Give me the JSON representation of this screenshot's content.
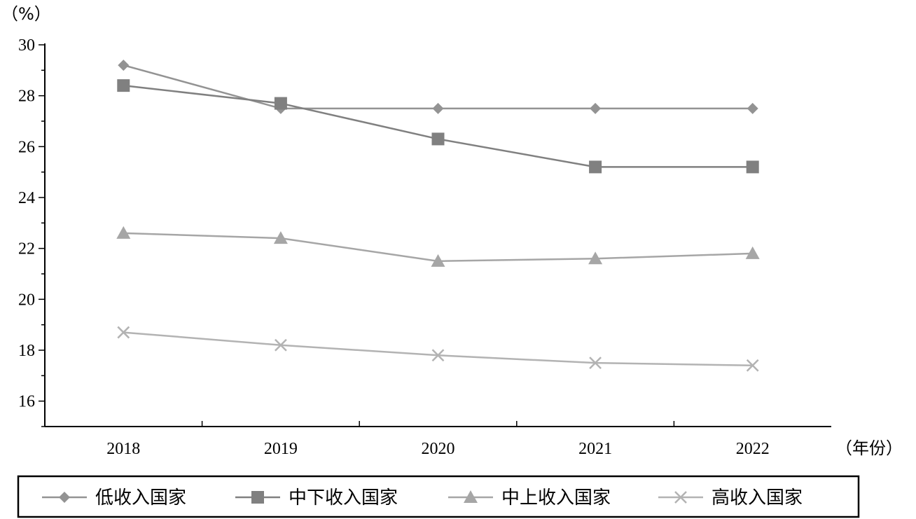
{
  "chart_data": {
    "type": "line",
    "title": "",
    "ylabel": "（%）",
    "xlabel": "（年份）",
    "categories": [
      "2018",
      "2019",
      "2020",
      "2021",
      "2022"
    ],
    "ylim": [
      15,
      30
    ],
    "yticks": [
      16,
      18,
      20,
      22,
      24,
      26,
      28,
      30
    ],
    "grid": false,
    "legend_position": "bottom",
    "series": [
      {
        "name": "低收入国家",
        "marker": "diamond-icon",
        "color": "#939393",
        "values": [
          29.2,
          27.5,
          27.5,
          27.5,
          27.5
        ]
      },
      {
        "name": "中下收入国家",
        "marker": "square-icon",
        "color": "#808080",
        "values": [
          28.4,
          27.7,
          26.3,
          25.2,
          25.2
        ]
      },
      {
        "name": "中上收入国家",
        "marker": "triangle-icon",
        "color": "#a6a6a6",
        "values": [
          22.6,
          22.4,
          21.5,
          21.6,
          21.8
        ]
      },
      {
        "name": "高收入国家",
        "marker": "cross-icon",
        "color": "#b3b3b3",
        "values": [
          18.7,
          18.2,
          17.8,
          17.5,
          17.4
        ]
      }
    ]
  }
}
